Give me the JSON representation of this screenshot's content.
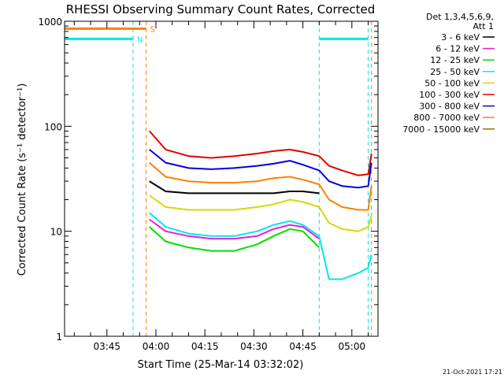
{
  "chart_data": {
    "type": "line",
    "title": "RHESSI Observing Summary Count Rates, Corrected",
    "xlabel": "Start Time (25-Mar-14 03:32:02)",
    "ylabel": "Corrected Count Rate (s⁻¹ detector⁻¹)",
    "y_scale": "log",
    "ylim": [
      1,
      1000
    ],
    "xlim": [
      "03:32:02",
      "05:08"
    ],
    "y_ticks": [
      {
        "value": 1,
        "label": "1"
      },
      {
        "value": 10,
        "label": "10"
      },
      {
        "value": 100,
        "label": "100"
      },
      {
        "value": 1000,
        "label": "1000"
      }
    ],
    "x_ticks": [
      {
        "value": "03:45",
        "label": "03:45"
      },
      {
        "value": "04:00",
        "label": "04:00"
      },
      {
        "value": "04:15",
        "label": "04:15"
      },
      {
        "value": "04:30",
        "label": "04:30"
      },
      {
        "value": "04:45",
        "label": "04:45"
      },
      {
        "value": "05:00",
        "label": "05:00"
      }
    ],
    "legend": {
      "position": "right",
      "header": [
        "Det 1,3,4,5,6,9,",
        "Att 1"
      ],
      "entries": [
        {
          "label": "3 - 6 keV",
          "color": "#000000"
        },
        {
          "label": "6 - 12 keV",
          "color": "#e020e0"
        },
        {
          "label": "12 - 25 keV",
          "color": "#00e000"
        },
        {
          "label": "25 - 50 keV",
          "color": "#00e8e8"
        },
        {
          "label": "50 - 100 keV",
          "color": "#d8d800"
        },
        {
          "label": "100 - 300 keV",
          "color": "#e00000"
        },
        {
          "label": "300 - 800 keV",
          "color": "#0000e0"
        },
        {
          "label": "800 - 7000 keV",
          "color": "#ff8000"
        },
        {
          "label": "7000 - 15000 keV",
          "color": "#a07000"
        }
      ]
    },
    "flags": [
      {
        "label": "S",
        "color": "#ff8000",
        "value": 850,
        "start": "03:32",
        "end": "03:57"
      },
      {
        "label": "N",
        "color": "#00e8e8",
        "value": 680,
        "start": "03:32",
        "end": "03:53"
      },
      {
        "label": "",
        "color": "#00e8e8",
        "value": 680,
        "start": "04:50",
        "end": "05:05"
      }
    ],
    "vlines": [
      {
        "time": "03:53",
        "color": "#00e8e8"
      },
      {
        "time": "03:57",
        "color": "#ff8000"
      },
      {
        "time": "04:50",
        "color": "#00e8e8"
      },
      {
        "time": "05:05",
        "color": "#00e8e8"
      },
      {
        "time": "05:06",
        "color": "#ff8000"
      }
    ],
    "x": [
      "03:58",
      "04:03",
      "04:10",
      "04:17",
      "04:24",
      "04:31",
      "04:36",
      "04:41",
      "04:45",
      "04:50",
      "04:53",
      "04:57",
      "05:02",
      "05:05",
      "05:06"
    ],
    "series": [
      {
        "name": "3 - 6 keV",
        "color": "#000000",
        "values": [
          30,
          24,
          23,
          23,
          23,
          23,
          23,
          24,
          24,
          23,
          null,
          null,
          null,
          null,
          null
        ]
      },
      {
        "name": "6 - 12 keV",
        "color": "#e020e0",
        "values": [
          13,
          10,
          9,
          8.5,
          8.5,
          9,
          10.5,
          11.5,
          11,
          8.5,
          null,
          null,
          null,
          null,
          null
        ]
      },
      {
        "name": "12 - 25 keV",
        "color": "#00e000",
        "values": [
          11,
          8,
          7,
          6.5,
          6.5,
          7.5,
          9,
          10.5,
          10,
          7,
          null,
          null,
          null,
          null,
          null
        ]
      },
      {
        "name": "25 - 50 keV",
        "color": "#00e8e8",
        "values": [
          15,
          11,
          9.5,
          9,
          9,
          10,
          11.5,
          12.5,
          11.5,
          9,
          3.5,
          3.5,
          4,
          4.5,
          6
        ]
      },
      {
        "name": "50 - 100 keV",
        "color": "#d8d800",
        "values": [
          22,
          17,
          16,
          16,
          16,
          17,
          18,
          20,
          19,
          17,
          12,
          10.5,
          10,
          11,
          14
        ]
      },
      {
        "name": "100 - 300 keV",
        "color": "#e00000",
        "values": [
          90,
          60,
          52,
          50,
          52,
          55,
          58,
          60,
          57,
          52,
          42,
          38,
          34,
          35,
          55
        ]
      },
      {
        "name": "300 - 800 keV",
        "color": "#0000e0",
        "values": [
          60,
          45,
          40,
          39,
          40,
          42,
          44,
          47,
          43,
          38,
          30,
          27,
          26,
          27,
          45
        ]
      },
      {
        "name": "800 - 7000 keV",
        "color": "#ff8000",
        "values": [
          45,
          33,
          30,
          29,
          29,
          30,
          32,
          33,
          31,
          28,
          20,
          17,
          16,
          16,
          27
        ]
      },
      {
        "name": "7000 - 15000 keV",
        "color": "#a07000",
        "values": [
          null,
          null,
          null,
          null,
          null,
          null,
          null,
          null,
          null,
          null,
          null,
          null,
          null,
          null,
          null
        ]
      }
    ]
  },
  "footer": {
    "date_stamp": "21-Oct-2021 17:21"
  }
}
